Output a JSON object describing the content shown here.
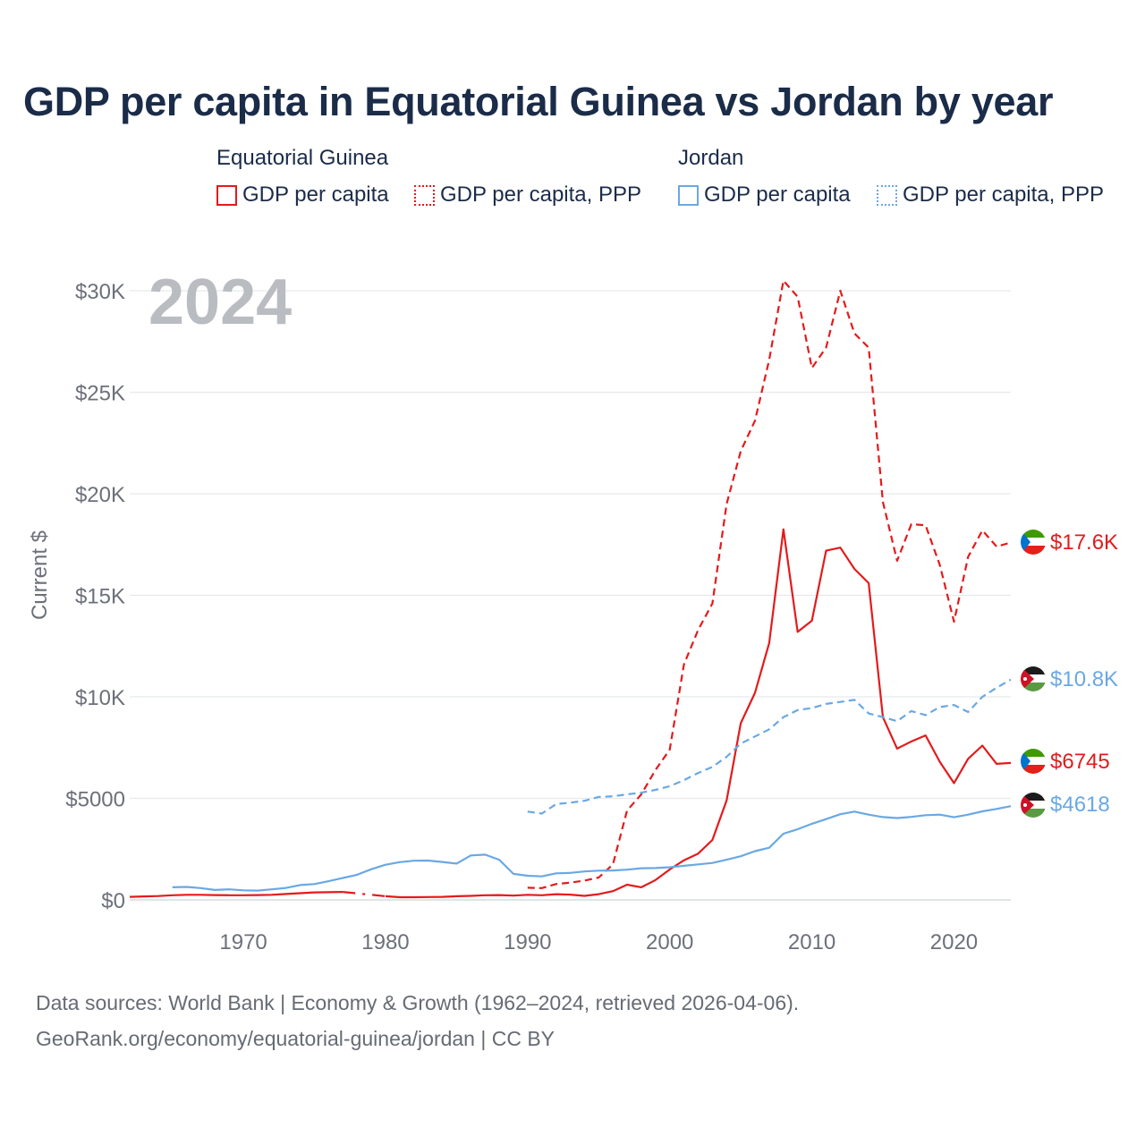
{
  "title": "GDP per capita in Equatorial Guinea vs Jordan by year",
  "legend": {
    "groups": [
      {
        "name": "Equatorial Guinea",
        "color": "#e41a1c",
        "items": [
          "GDP per capita",
          "GDP per capita, PPP"
        ]
      },
      {
        "name": "Jordan",
        "color": "#6aa8e4",
        "items": [
          "GDP per capita",
          "GDP per capita, PPP"
        ]
      }
    ]
  },
  "year_watermark": "2024",
  "footer": {
    "line1": "Data sources: World Bank | Economy & Growth (1962–2024, retrieved 2026-04-06).",
    "line2": "GeoRank.org/economy/equatorial-guinea/jordan | CC BY"
  },
  "chart_data": {
    "type": "line",
    "title": "GDP per capita in Equatorial Guinea vs Jordan by year",
    "xlabel": "",
    "ylabel": "Current $",
    "xlim": [
      1962,
      2024
    ],
    "ylim": [
      0,
      31000
    ],
    "x_ticks": [
      {
        "value": 1970,
        "label": "1970"
      },
      {
        "value": 1980,
        "label": "1980"
      },
      {
        "value": 1990,
        "label": "1990"
      },
      {
        "value": 2000,
        "label": "2000"
      },
      {
        "value": 2010,
        "label": "2010"
      },
      {
        "value": 2020,
        "label": "2020"
      }
    ],
    "y_ticks": [
      {
        "value": 0,
        "label": "$0"
      },
      {
        "value": 5000,
        "label": "$5000"
      },
      {
        "value": 10000,
        "label": "$10K"
      },
      {
        "value": 15000,
        "label": "$15K"
      },
      {
        "value": 20000,
        "label": "$20K"
      },
      {
        "value": 25000,
        "label": "$25K"
      },
      {
        "value": 30000,
        "label": "$30K"
      }
    ],
    "grid": true,
    "series": [
      {
        "name": "Equatorial Guinea GDP per capita",
        "country": "Equatorial Guinea",
        "color": "#e41a1c",
        "style": "solid",
        "end_label": "$6745",
        "gap_years": [
          [
            1977,
            1980
          ]
        ],
        "points": [
          [
            1962,
            150
          ],
          [
            1963,
            170
          ],
          [
            1964,
            190
          ],
          [
            1965,
            230
          ],
          [
            1966,
            250
          ],
          [
            1967,
            250
          ],
          [
            1968,
            240
          ],
          [
            1969,
            230
          ],
          [
            1970,
            230
          ],
          [
            1971,
            240
          ],
          [
            1972,
            250
          ],
          [
            1973,
            290
          ],
          [
            1974,
            330
          ],
          [
            1975,
            370
          ],
          [
            1976,
            380
          ],
          [
            1977,
            390
          ],
          [
            1980,
            180
          ],
          [
            1981,
            130
          ],
          [
            1982,
            130
          ],
          [
            1983,
            140
          ],
          [
            1984,
            150
          ],
          [
            1985,
            180
          ],
          [
            1986,
            200
          ],
          [
            1987,
            230
          ],
          [
            1988,
            240
          ],
          [
            1989,
            210
          ],
          [
            1990,
            250
          ],
          [
            1991,
            230
          ],
          [
            1992,
            280
          ],
          [
            1993,
            260
          ],
          [
            1994,
            200
          ],
          [
            1995,
            280
          ],
          [
            1996,
            430
          ],
          [
            1997,
            750
          ],
          [
            1998,
            620
          ],
          [
            1999,
            980
          ],
          [
            2000,
            1500
          ],
          [
            2001,
            1950
          ],
          [
            2002,
            2280
          ],
          [
            2003,
            2950
          ],
          [
            2004,
            4900
          ],
          [
            2005,
            8700
          ],
          [
            2006,
            10200
          ],
          [
            2007,
            12650
          ],
          [
            2008,
            18250
          ],
          [
            2009,
            13200
          ],
          [
            2010,
            13750
          ],
          [
            2011,
            17200
          ],
          [
            2012,
            17350
          ],
          [
            2013,
            16300
          ],
          [
            2014,
            15600
          ],
          [
            2015,
            9000
          ],
          [
            2016,
            7450
          ],
          [
            2017,
            7800
          ],
          [
            2018,
            8100
          ],
          [
            2019,
            6800
          ],
          [
            2020,
            5750
          ],
          [
            2021,
            6950
          ],
          [
            2022,
            7600
          ],
          [
            2023,
            6700
          ],
          [
            2024,
            6745
          ]
        ]
      },
      {
        "name": "Equatorial Guinea GDP per capita, PPP",
        "country": "Equatorial Guinea",
        "color": "#e41a1c",
        "style": "dashed",
        "end_label": "$17.6K",
        "points": [
          [
            1990,
            600
          ],
          [
            1991,
            580
          ],
          [
            1992,
            780
          ],
          [
            1993,
            850
          ],
          [
            1994,
            950
          ],
          [
            1995,
            1100
          ],
          [
            1996,
            1750
          ],
          [
            1997,
            4400
          ],
          [
            1998,
            5200
          ],
          [
            1999,
            6400
          ],
          [
            2000,
            7400
          ],
          [
            2001,
            11600
          ],
          [
            2002,
            13300
          ],
          [
            2003,
            14600
          ],
          [
            2004,
            19500
          ],
          [
            2005,
            22100
          ],
          [
            2006,
            23600
          ],
          [
            2007,
            26600
          ],
          [
            2008,
            30500
          ],
          [
            2009,
            29700
          ],
          [
            2010,
            26200
          ],
          [
            2011,
            27200
          ],
          [
            2012,
            30000
          ],
          [
            2013,
            27900
          ],
          [
            2014,
            27200
          ],
          [
            2015,
            19600
          ],
          [
            2016,
            16700
          ],
          [
            2017,
            18500
          ],
          [
            2018,
            18450
          ],
          [
            2019,
            16500
          ],
          [
            2020,
            13700
          ],
          [
            2021,
            16900
          ],
          [
            2022,
            18200
          ],
          [
            2023,
            17400
          ],
          [
            2024,
            17600
          ]
        ]
      },
      {
        "name": "Jordan GDP per capita",
        "country": "Jordan",
        "color": "#6aa8e4",
        "style": "solid",
        "end_label": "$4618",
        "points": [
          [
            1965,
            620
          ],
          [
            1966,
            640
          ],
          [
            1967,
            580
          ],
          [
            1968,
            490
          ],
          [
            1969,
            520
          ],
          [
            1970,
            470
          ],
          [
            1971,
            460
          ],
          [
            1972,
            520
          ],
          [
            1973,
            590
          ],
          [
            1974,
            730
          ],
          [
            1975,
            780
          ],
          [
            1976,
            920
          ],
          [
            1977,
            1080
          ],
          [
            1978,
            1240
          ],
          [
            1979,
            1510
          ],
          [
            1980,
            1730
          ],
          [
            1981,
            1860
          ],
          [
            1982,
            1930
          ],
          [
            1983,
            1940
          ],
          [
            1984,
            1870
          ],
          [
            1985,
            1790
          ],
          [
            1986,
            2190
          ],
          [
            1987,
            2230
          ],
          [
            1988,
            1980
          ],
          [
            1989,
            1280
          ],
          [
            1990,
            1190
          ],
          [
            1991,
            1160
          ],
          [
            1992,
            1310
          ],
          [
            1993,
            1330
          ],
          [
            1994,
            1400
          ],
          [
            1995,
            1440
          ],
          [
            1996,
            1450
          ],
          [
            1997,
            1490
          ],
          [
            1998,
            1560
          ],
          [
            1999,
            1570
          ],
          [
            2000,
            1610
          ],
          [
            2001,
            1680
          ],
          [
            2002,
            1750
          ],
          [
            2003,
            1820
          ],
          [
            2004,
            1980
          ],
          [
            2005,
            2150
          ],
          [
            2006,
            2400
          ],
          [
            2007,
            2570
          ],
          [
            2008,
            3260
          ],
          [
            2009,
            3480
          ],
          [
            2010,
            3750
          ],
          [
            2011,
            3980
          ],
          [
            2012,
            4220
          ],
          [
            2013,
            4350
          ],
          [
            2014,
            4200
          ],
          [
            2015,
            4080
          ],
          [
            2016,
            4030
          ],
          [
            2017,
            4090
          ],
          [
            2018,
            4170
          ],
          [
            2019,
            4200
          ],
          [
            2020,
            4070
          ],
          [
            2021,
            4200
          ],
          [
            2022,
            4360
          ],
          [
            2023,
            4480
          ],
          [
            2024,
            4618
          ]
        ]
      },
      {
        "name": "Jordan GDP per capita, PPP",
        "country": "Jordan",
        "color": "#6aa8e4",
        "style": "dashed",
        "end_label": "$10.8K",
        "points": [
          [
            1990,
            4350
          ],
          [
            1991,
            4250
          ],
          [
            1992,
            4720
          ],
          [
            1993,
            4790
          ],
          [
            1994,
            4880
          ],
          [
            1995,
            5070
          ],
          [
            1996,
            5100
          ],
          [
            1997,
            5200
          ],
          [
            1998,
            5280
          ],
          [
            1999,
            5420
          ],
          [
            2000,
            5600
          ],
          [
            2001,
            5900
          ],
          [
            2002,
            6250
          ],
          [
            2003,
            6550
          ],
          [
            2004,
            7050
          ],
          [
            2005,
            7700
          ],
          [
            2006,
            8050
          ],
          [
            2007,
            8400
          ],
          [
            2008,
            9000
          ],
          [
            2009,
            9350
          ],
          [
            2010,
            9450
          ],
          [
            2011,
            9650
          ],
          [
            2012,
            9750
          ],
          [
            2013,
            9850
          ],
          [
            2014,
            9180
          ],
          [
            2015,
            9000
          ],
          [
            2016,
            8800
          ],
          [
            2017,
            9300
          ],
          [
            2018,
            9100
          ],
          [
            2019,
            9500
          ],
          [
            2020,
            9600
          ],
          [
            2021,
            9250
          ],
          [
            2022,
            10000
          ],
          [
            2023,
            10450
          ],
          [
            2024,
            10850
          ]
        ]
      }
    ]
  }
}
